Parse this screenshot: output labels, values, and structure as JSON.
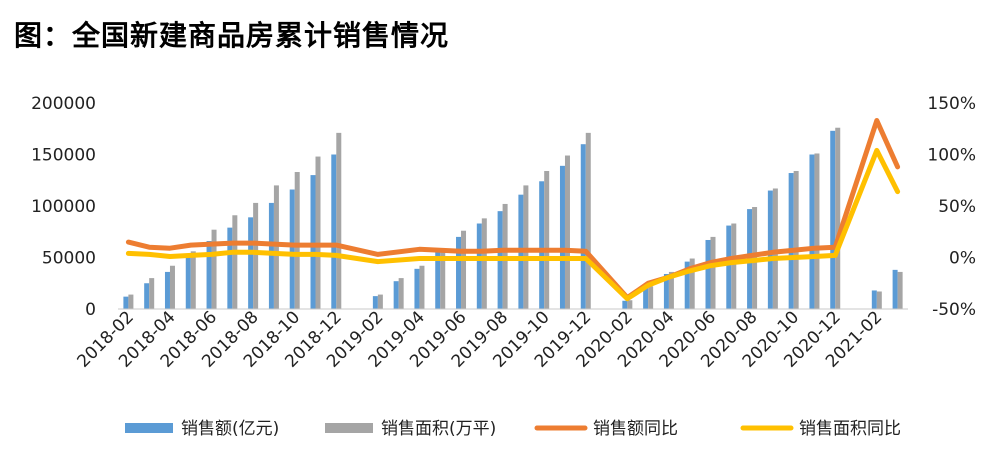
{
  "page": {
    "title": "图：全国新建商品房累计销售情况"
  },
  "chart_data": {
    "type": "bar",
    "title": "图：全国新建商品房累计销售情况",
    "xlabel": "",
    "ylabel": "",
    "x_tick_labels": [
      "2018-02",
      "2018-04",
      "2018-06",
      "2018-08",
      "2018-10",
      "2018-12",
      "2019-02",
      "2019-04",
      "2019-06",
      "2019-08",
      "2019-10",
      "2019-12",
      "2020-02",
      "2020-04",
      "2020-06",
      "2020-08",
      "2020-10",
      "2020-12",
      "2021-02"
    ],
    "categories": [
      "2018-02",
      "2018-03",
      "2018-04",
      "2018-05",
      "2018-06",
      "2018-07",
      "2018-08",
      "2018-09",
      "2018-10",
      "2018-11",
      "2018-12",
      "2019-01",
      "2019-02",
      "2019-03",
      "2019-04",
      "2019-05",
      "2019-06",
      "2019-07",
      "2019-08",
      "2019-09",
      "2019-10",
      "2019-11",
      "2019-12",
      "2020-01",
      "2020-02",
      "2020-03",
      "2020-04",
      "2020-05",
      "2020-06",
      "2020-07",
      "2020-08",
      "2020-09",
      "2020-10",
      "2020-11",
      "2020-12",
      "2021-01",
      "2021-02",
      "2021-03"
    ],
    "y_left": {
      "lim": [
        0,
        200000
      ],
      "ticks": [
        "0",
        "50000",
        "100000",
        "150000",
        "200000"
      ]
    },
    "y_right": {
      "lim": [
        -50,
        150
      ],
      "ticks": [
        "-50%",
        "0%",
        "50%",
        "100%",
        "150%"
      ]
    },
    "grid": false,
    "legend_position": "bottom",
    "series": [
      {
        "name": "销售额(亿元)",
        "kind": "bar",
        "axis": "left",
        "color": "#5b9bd5",
        "values": [
          12000,
          25000,
          36000,
          50000,
          66000,
          79000,
          89000,
          103000,
          116000,
          130000,
          150000,
          null,
          12500,
          27000,
          39000,
          55000,
          70000,
          83000,
          95000,
          111000,
          124000,
          139000,
          160000,
          null,
          8000,
          20000,
          34000,
          46000,
          67000,
          81000,
          97000,
          115000,
          132000,
          150000,
          173000,
          null,
          18000,
          38000
        ]
      },
      {
        "name": "销售面积(万平)",
        "kind": "bar",
        "axis": "left",
        "color": "#a5a5a5",
        "values": [
          14000,
          30000,
          42000,
          56000,
          77000,
          91000,
          103000,
          120000,
          133000,
          148000,
          171000,
          null,
          14000,
          30000,
          42000,
          58000,
          76000,
          88000,
          102000,
          120000,
          134000,
          149000,
          171000,
          null,
          8500,
          22000,
          36000,
          49000,
          70000,
          83000,
          99000,
          117000,
          134000,
          151000,
          176000,
          null,
          17000,
          36000
        ]
      },
      {
        "name": "销售额同比",
        "kind": "line",
        "axis": "right",
        "color": "#ed7d31",
        "values": [
          15,
          10,
          9,
          12,
          13,
          14,
          14,
          13,
          12,
          12,
          12,
          null,
          3,
          null,
          8,
          null,
          6,
          6,
          7,
          7,
          7,
          7,
          6,
          null,
          -39,
          -25,
          -19,
          -11,
          -5,
          -1,
          2,
          5,
          7,
          9,
          10,
          null,
          133,
          88
        ]
      },
      {
        "name": "销售面积同比",
        "kind": "line",
        "axis": "right",
        "color": "#ffc000",
        "values": [
          4,
          3,
          1,
          2,
          3,
          5,
          5,
          4,
          3,
          3,
          2,
          null,
          -4,
          null,
          -1,
          null,
          -1,
          -1,
          -1,
          -1,
          -1,
          -1,
          -1,
          null,
          -40,
          -27,
          -19,
          -13,
          -8,
          -5,
          -3,
          -1,
          0,
          1,
          2,
          null,
          104,
          64
        ]
      }
    ]
  }
}
